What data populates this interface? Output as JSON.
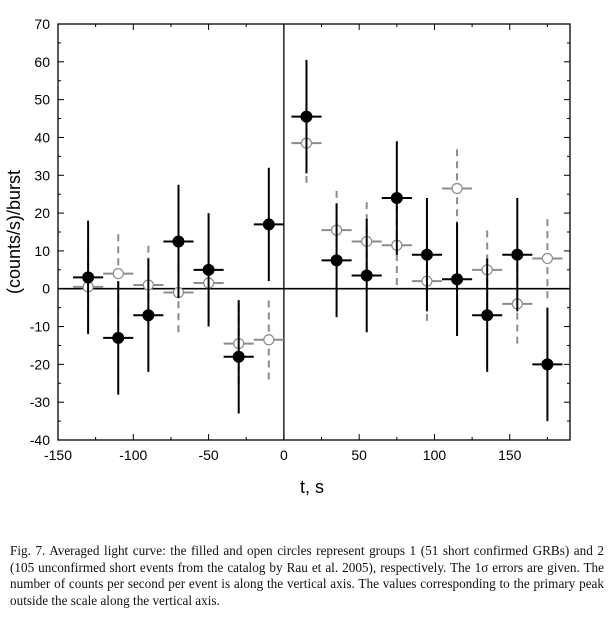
{
  "chart_data": {
    "type": "scatter",
    "xlabel": "t, s",
    "ylabel": "(counts/s)/burst",
    "xlim": [
      -150,
      190
    ],
    "ylim": [
      -40,
      70
    ],
    "xticks": [
      -150,
      -100,
      -50,
      0,
      50,
      100,
      150
    ],
    "yticks": [
      -40,
      -30,
      -20,
      -10,
      0,
      10,
      20,
      30,
      40,
      50,
      60,
      70
    ],
    "grid": false,
    "reference_lines": {
      "horizontal_y": 0,
      "vertical_x": 0
    },
    "series": [
      {
        "marker": "filled-circle",
        "color": "#000000",
        "xerr": 10,
        "points": [
          {
            "x": -130,
            "y": 3,
            "yerr": 15
          },
          {
            "x": -110,
            "y": -13,
            "yerr": 15
          },
          {
            "x": -90,
            "y": -7,
            "yerr": 15
          },
          {
            "x": -70,
            "y": 12.5,
            "yerr": 15
          },
          {
            "x": -50,
            "y": 5,
            "yerr": 15
          },
          {
            "x": -30,
            "y": -18,
            "yerr": 15
          },
          {
            "x": -10,
            "y": 17,
            "yerr": 15
          },
          {
            "x": 15,
            "y": 45.5,
            "yerr": 15
          },
          {
            "x": 35,
            "y": 7.5,
            "yerr": 15
          },
          {
            "x": 55,
            "y": 3.5,
            "yerr": 15
          },
          {
            "x": 75,
            "y": 24,
            "yerr": 15
          },
          {
            "x": 95,
            "y": 9,
            "yerr": 15
          },
          {
            "x": 115,
            "y": 2.5,
            "yerr": 15
          },
          {
            "x": 135,
            "y": -7,
            "yerr": 15
          },
          {
            "x": 155,
            "y": 9,
            "yerr": 15
          },
          {
            "x": 175,
            "y": -20,
            "yerr": 15
          }
        ]
      },
      {
        "marker": "open-circle",
        "color": "#8c8c8c",
        "xerr": 10,
        "points": [
          {
            "x": -130,
            "y": 0.5,
            "yerr": 10.5
          },
          {
            "x": -110,
            "y": 4,
            "yerr": 10.5
          },
          {
            "x": -90,
            "y": 1,
            "yerr": 10.5
          },
          {
            "x": -70,
            "y": -1,
            "yerr": 10.5
          },
          {
            "x": -50,
            "y": 1.5,
            "yerr": 10.5
          },
          {
            "x": -30,
            "y": -14.5,
            "yerr": 10.5
          },
          {
            "x": -10,
            "y": -13.5,
            "yerr": 10.5
          },
          {
            "x": 15,
            "y": 38.5,
            "yerr": 10.5
          },
          {
            "x": 35,
            "y": 15.5,
            "yerr": 10.5
          },
          {
            "x": 55,
            "y": 12.5,
            "yerr": 10.5
          },
          {
            "x": 75,
            "y": 11.5,
            "yerr": 10.5
          },
          {
            "x": 95,
            "y": 2,
            "yerr": 10.5
          },
          {
            "x": 115,
            "y": 26.5,
            "yerr": 10.5
          },
          {
            "x": 135,
            "y": 5,
            "yerr": 10.5
          },
          {
            "x": 155,
            "y": -4,
            "yerr": 10.5
          },
          {
            "x": 175,
            "y": 8,
            "yerr": 10.5
          }
        ]
      }
    ]
  },
  "caption": "Fig. 7. Averaged light curve: the filled and open circles represent groups 1 (51 short confirmed GRBs) and 2 (105 unconfirmed short events from the catalog by Rau et al. 2005), respectively. The 1σ errors are given. The number of counts per second per event is along the vertical axis. The values corresponding to the primary peak outside the scale along the vertical axis."
}
